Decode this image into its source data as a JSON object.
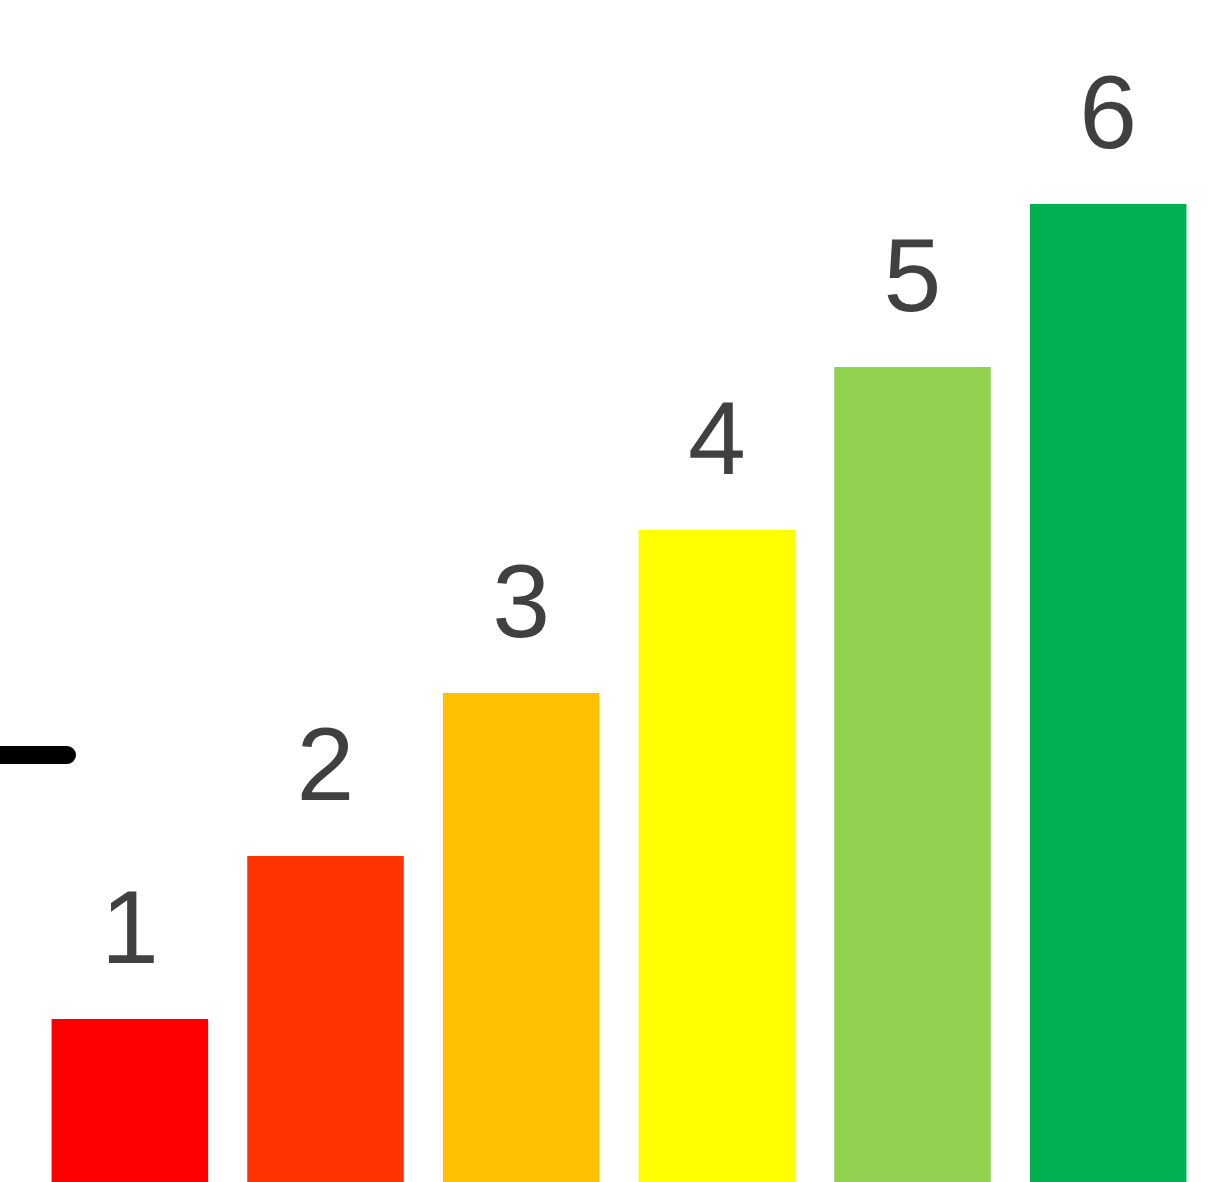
{
  "chart_data": {
    "type": "bar",
    "categories": [
      null,
      null,
      null,
      null,
      null,
      null
    ],
    "values": [
      1,
      2,
      3,
      4,
      5,
      6
    ],
    "colors": [
      "#ff0000",
      "#ff3300",
      "#ffc000",
      "#ffff00",
      "#92d050",
      "#00b050"
    ],
    "data_labels": true
  }
}
